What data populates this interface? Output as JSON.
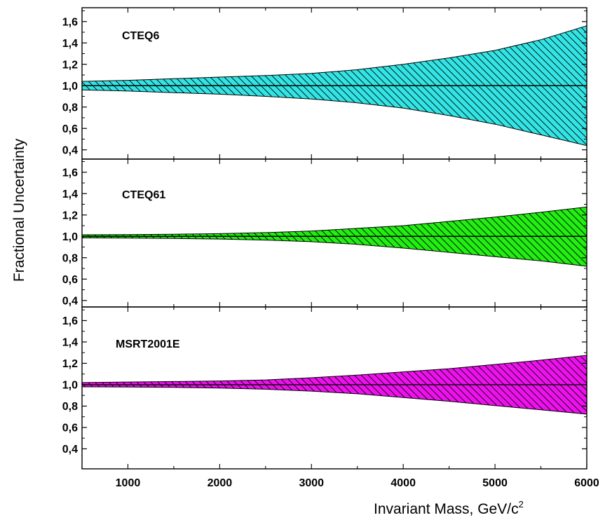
{
  "chart_data": {
    "type": "area",
    "xlabel": "Invariant Mass, GeV/c",
    "xlabel_superscript": "2",
    "ylabel": "Fractional Uncertainty",
    "xlim": [
      500,
      6000
    ],
    "ylim": [
      0.3,
      1.7
    ],
    "x_ticks": [
      1000,
      2000,
      3000,
      4000,
      5000,
      6000
    ],
    "y_ticks": [
      "0,4",
      "0,6",
      "0,8",
      "1,0",
      "1,2",
      "1,4",
      "1,6"
    ],
    "y_tick_values": [
      0.4,
      0.6,
      0.8,
      1.0,
      1.2,
      1.4,
      1.6
    ],
    "reference_line": 1.0,
    "panels": [
      {
        "name": "CTEQ6",
        "color": "#33e4e4",
        "x": [
          500,
          1000,
          1500,
          2000,
          2500,
          3000,
          3500,
          4000,
          4500,
          5000,
          5500,
          6000
        ],
        "upper": [
          1.04,
          1.05,
          1.065,
          1.08,
          1.095,
          1.115,
          1.15,
          1.2,
          1.26,
          1.33,
          1.43,
          1.56
        ],
        "lower": [
          0.96,
          0.95,
          0.935,
          0.92,
          0.9,
          0.875,
          0.84,
          0.79,
          0.72,
          0.64,
          0.54,
          0.44
        ]
      },
      {
        "name": "CTEQ61",
        "color": "#22ee11",
        "x": [
          500,
          1000,
          1500,
          2000,
          2500,
          3000,
          3500,
          4000,
          4500,
          5000,
          5500,
          6000
        ],
        "upper": [
          1.015,
          1.017,
          1.02,
          1.025,
          1.035,
          1.05,
          1.075,
          1.1,
          1.14,
          1.18,
          1.225,
          1.275
        ],
        "lower": [
          0.985,
          0.983,
          0.98,
          0.975,
          0.965,
          0.95,
          0.925,
          0.89,
          0.85,
          0.81,
          0.77,
          0.72
        ]
      },
      {
        "name": "MSRT2001E",
        "color": "#ee11ee",
        "x": [
          500,
          1000,
          1500,
          2000,
          2500,
          3000,
          3500,
          4000,
          4500,
          5000,
          5500,
          6000
        ],
        "upper": [
          1.02,
          1.025,
          1.03,
          1.035,
          1.045,
          1.065,
          1.09,
          1.12,
          1.15,
          1.19,
          1.23,
          1.275
        ],
        "lower": [
          0.98,
          0.978,
          0.975,
          0.968,
          0.958,
          0.94,
          0.915,
          0.88,
          0.845,
          0.805,
          0.765,
          0.725
        ]
      }
    ]
  }
}
